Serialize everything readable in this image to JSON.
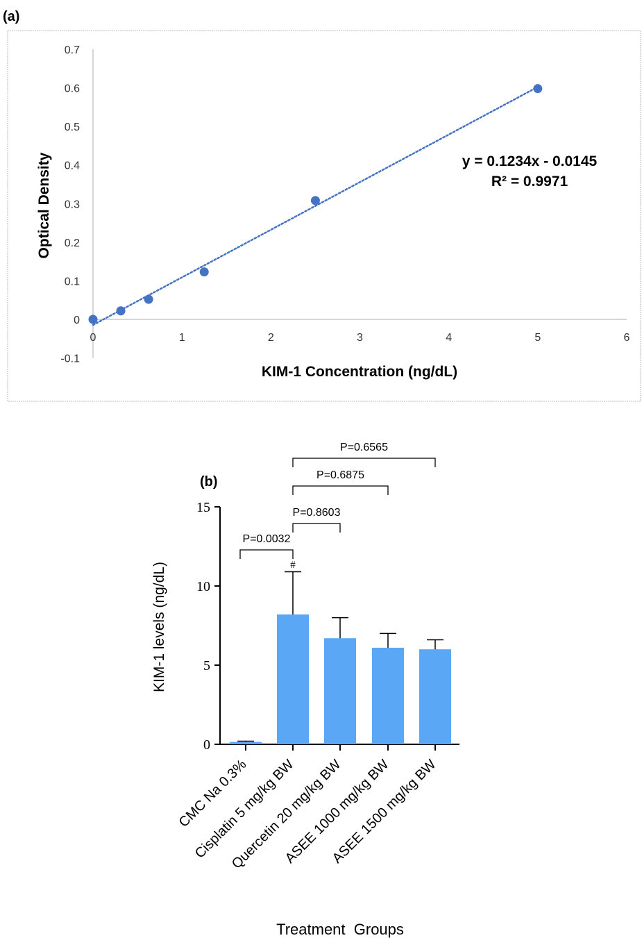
{
  "chart_data": [
    {
      "panel_label": "(a)",
      "type": "scatter",
      "xlabel": "KIM-1 Concentration (ng/dL)",
      "ylabel": "Optical Density",
      "xlim": [
        0,
        6
      ],
      "ylim": [
        -0.1,
        0.7
      ],
      "x_ticks": [
        "0",
        "1",
        "2",
        "3",
        "4",
        "5",
        "6"
      ],
      "y_ticks": [
        "-0.1",
        "0",
        "0.1",
        "0.2",
        "0.3",
        "0.4",
        "0.5",
        "0.6",
        "0.7"
      ],
      "points": [
        {
          "x": 0,
          "y": 0
        },
        {
          "x": 0.3125,
          "y": 0.022
        },
        {
          "x": 0.625,
          "y": 0.052
        },
        {
          "x": 1.25,
          "y": 0.123
        },
        {
          "x": 2.5,
          "y": 0.308
        },
        {
          "x": 5,
          "y": 0.598
        }
      ],
      "trendline": {
        "slope": 0.1234,
        "intercept": -0.0145,
        "style": "dotted"
      },
      "equation": "y = 0.1234x - 0.0145",
      "r_squared": "R² = 0.9971",
      "grid": false,
      "marker_color": "#4472C4"
    },
    {
      "panel_label": "(b)",
      "type": "bar",
      "categories": [
        "CMC Na 0.3%",
        "Cisplatin 5 mg/kg BW",
        "Quercetin 20 mg/kg BW",
        "ASEE 1000 mg/kg BW",
        "ASEE 1500 mg/kg BW"
      ],
      "values": [
        0.15,
        8.2,
        6.7,
        6.1,
        6.0
      ],
      "error_upper": [
        0.2,
        10.9,
        8.0,
        7.0,
        6.6
      ],
      "xlabel": "Treatment  Groups",
      "ylabel": "KIM-1 levels (ng/dL)",
      "ylim": [
        0,
        15
      ],
      "y_ticks": [
        "0",
        "5",
        "10",
        "15"
      ],
      "bar_color": "#5AA7F5",
      "significance_mark": "#",
      "comparisons": [
        {
          "from": 0,
          "to": 1,
          "label": "P=0.0032"
        },
        {
          "from": 1,
          "to": 2,
          "label": "P=0.8603"
        },
        {
          "from": 1,
          "to": 3,
          "label": "P=0.6875"
        },
        {
          "from": 1,
          "to": 4,
          "label": "P=0.6565"
        }
      ]
    }
  ]
}
